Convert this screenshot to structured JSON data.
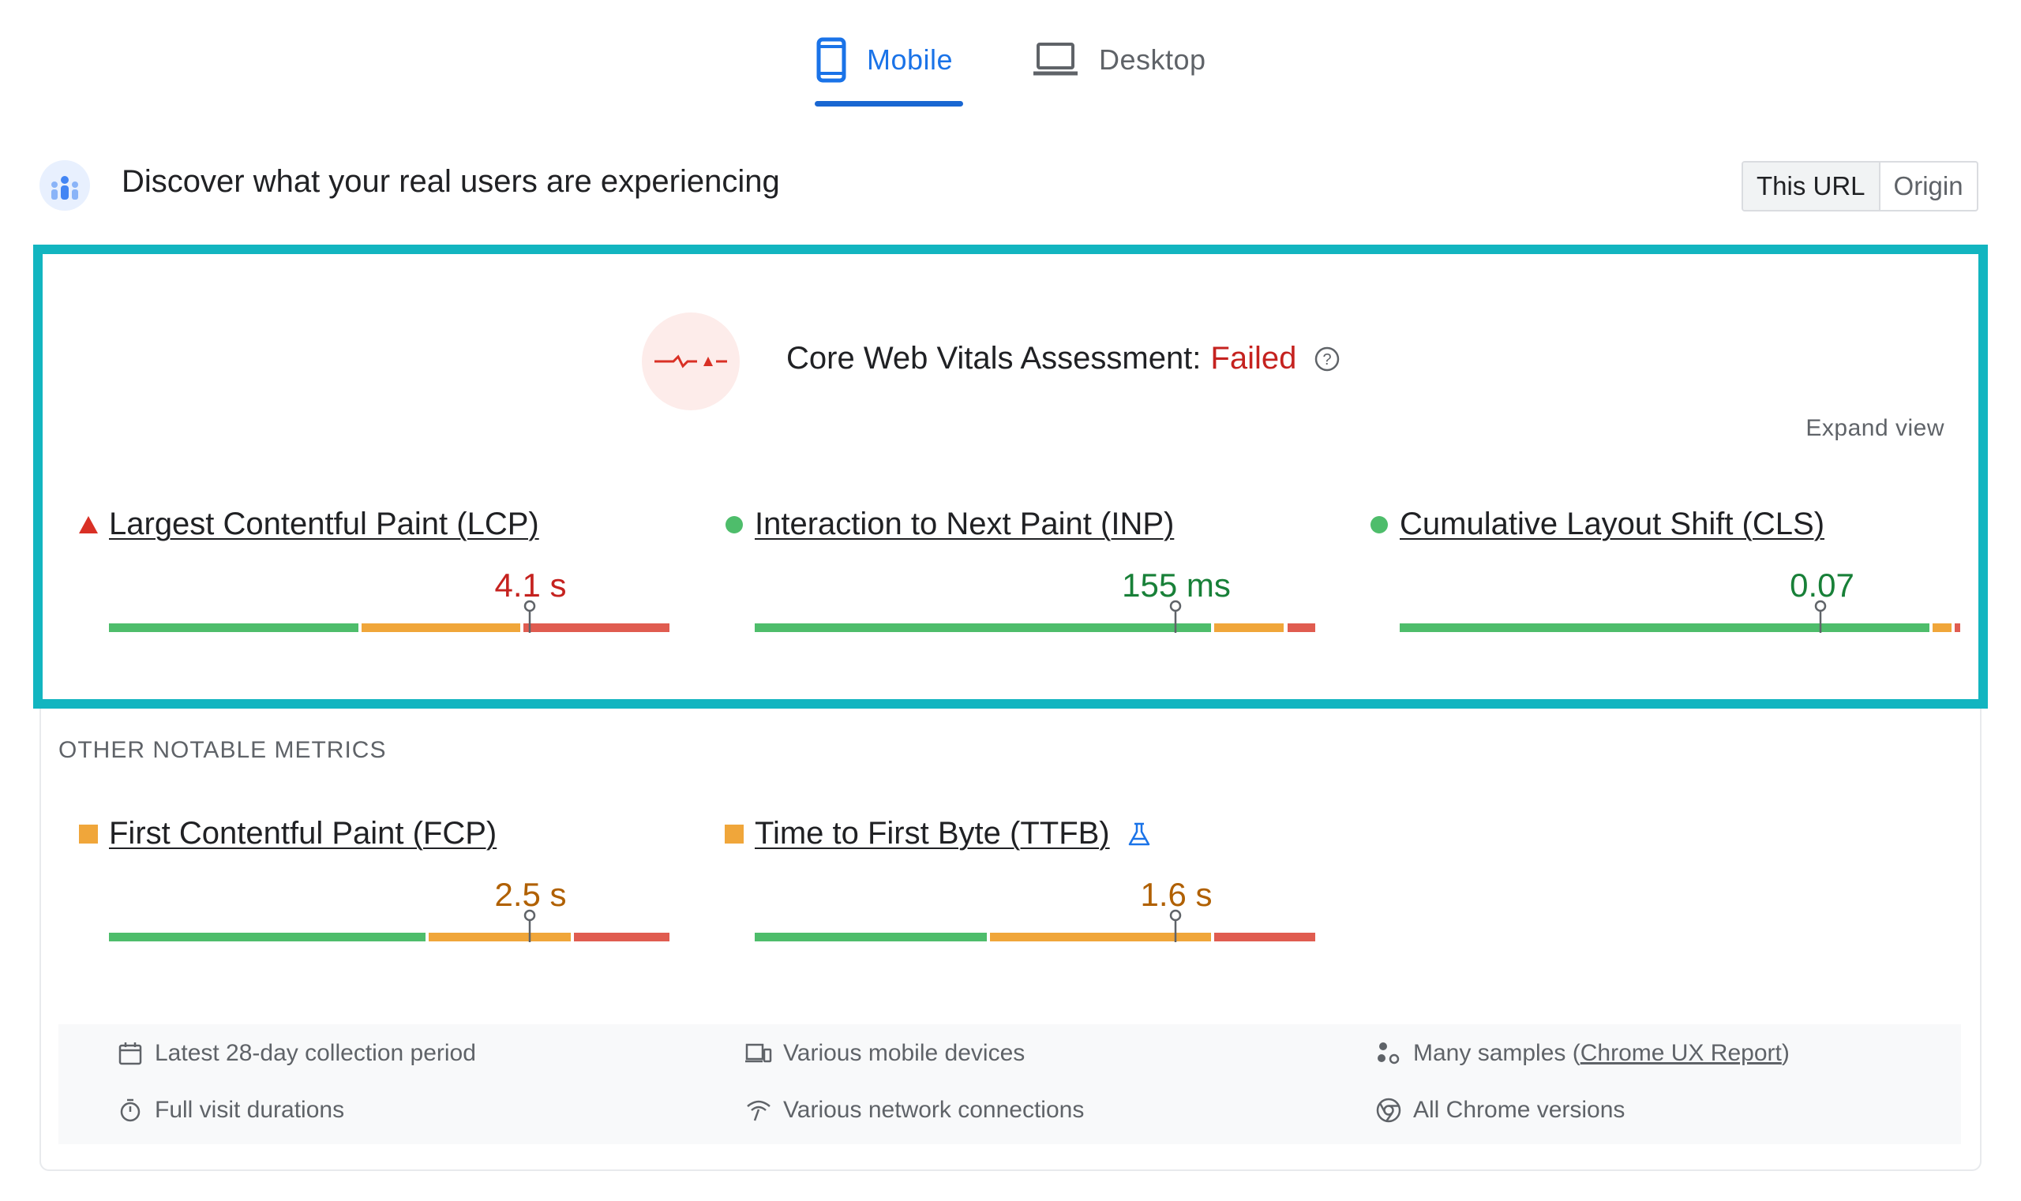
{
  "tabs": [
    {
      "label": "Mobile",
      "icon": "smartphone-icon",
      "active": true
    },
    {
      "label": "Desktop",
      "icon": "laptop-icon",
      "active": false
    }
  ],
  "header": {
    "title": "Discover what your real users are experiencing",
    "scope": [
      {
        "label": "This URL",
        "active": true
      },
      {
        "label": "Origin",
        "active": false
      }
    ]
  },
  "assessment": {
    "prefix": "Core Web Vitals Assessment:",
    "status": "Failed",
    "status_color": "#c5221f",
    "expand_label": "Expand view"
  },
  "core_metrics": [
    {
      "name": "Largest Contentful Paint (LCP)",
      "value": "4.1 s",
      "rating": "poor",
      "color": "#c5221f",
      "distribution": [
        0.45,
        0.29,
        0.26
      ],
      "marker_percentile": 0.75
    },
    {
      "name": "Interaction to Next Paint (INP)",
      "value": "155 ms",
      "rating": "good",
      "color": "#188038",
      "distribution": [
        0.82,
        0.13,
        0.05
      ],
      "marker_percentile": 0.75
    },
    {
      "name": "Cumulative Layout Shift (CLS)",
      "value": "0.07",
      "rating": "good",
      "color": "#188038",
      "distribution": [
        0.95,
        0.04,
        0.01
      ],
      "marker_percentile": 0.75
    }
  ],
  "other_section_title": "OTHER NOTABLE METRICS",
  "other_metrics": [
    {
      "name": "First Contentful Paint (FCP)",
      "value": "2.5 s",
      "rating": "needs-improvement",
      "color": "#b06000",
      "distribution": [
        0.57,
        0.26,
        0.17
      ],
      "marker_percentile": 0.75
    },
    {
      "name": "Time to First Byte (TTFB)",
      "value": "1.6 s",
      "rating": "needs-improvement",
      "color": "#b06000",
      "distribution": [
        0.42,
        0.4,
        0.18
      ],
      "marker_percentile": 0.75,
      "experimental_icon": "flask-icon"
    }
  ],
  "colors": {
    "good": "#4ebd6b",
    "needs_improvement": "#f0a63a",
    "poor": "#e05c50",
    "highlight": "#12b5c0",
    "accent": "#1a73e8"
  },
  "footer": {
    "period": "Latest 28-day collection period",
    "durations": "Full visit durations",
    "devices": "Various mobile devices",
    "network": "Various network connections",
    "samples_prefix": "Many samples (",
    "samples_link": "Chrome UX Report",
    "samples_suffix": ")",
    "versions": "All Chrome versions"
  }
}
